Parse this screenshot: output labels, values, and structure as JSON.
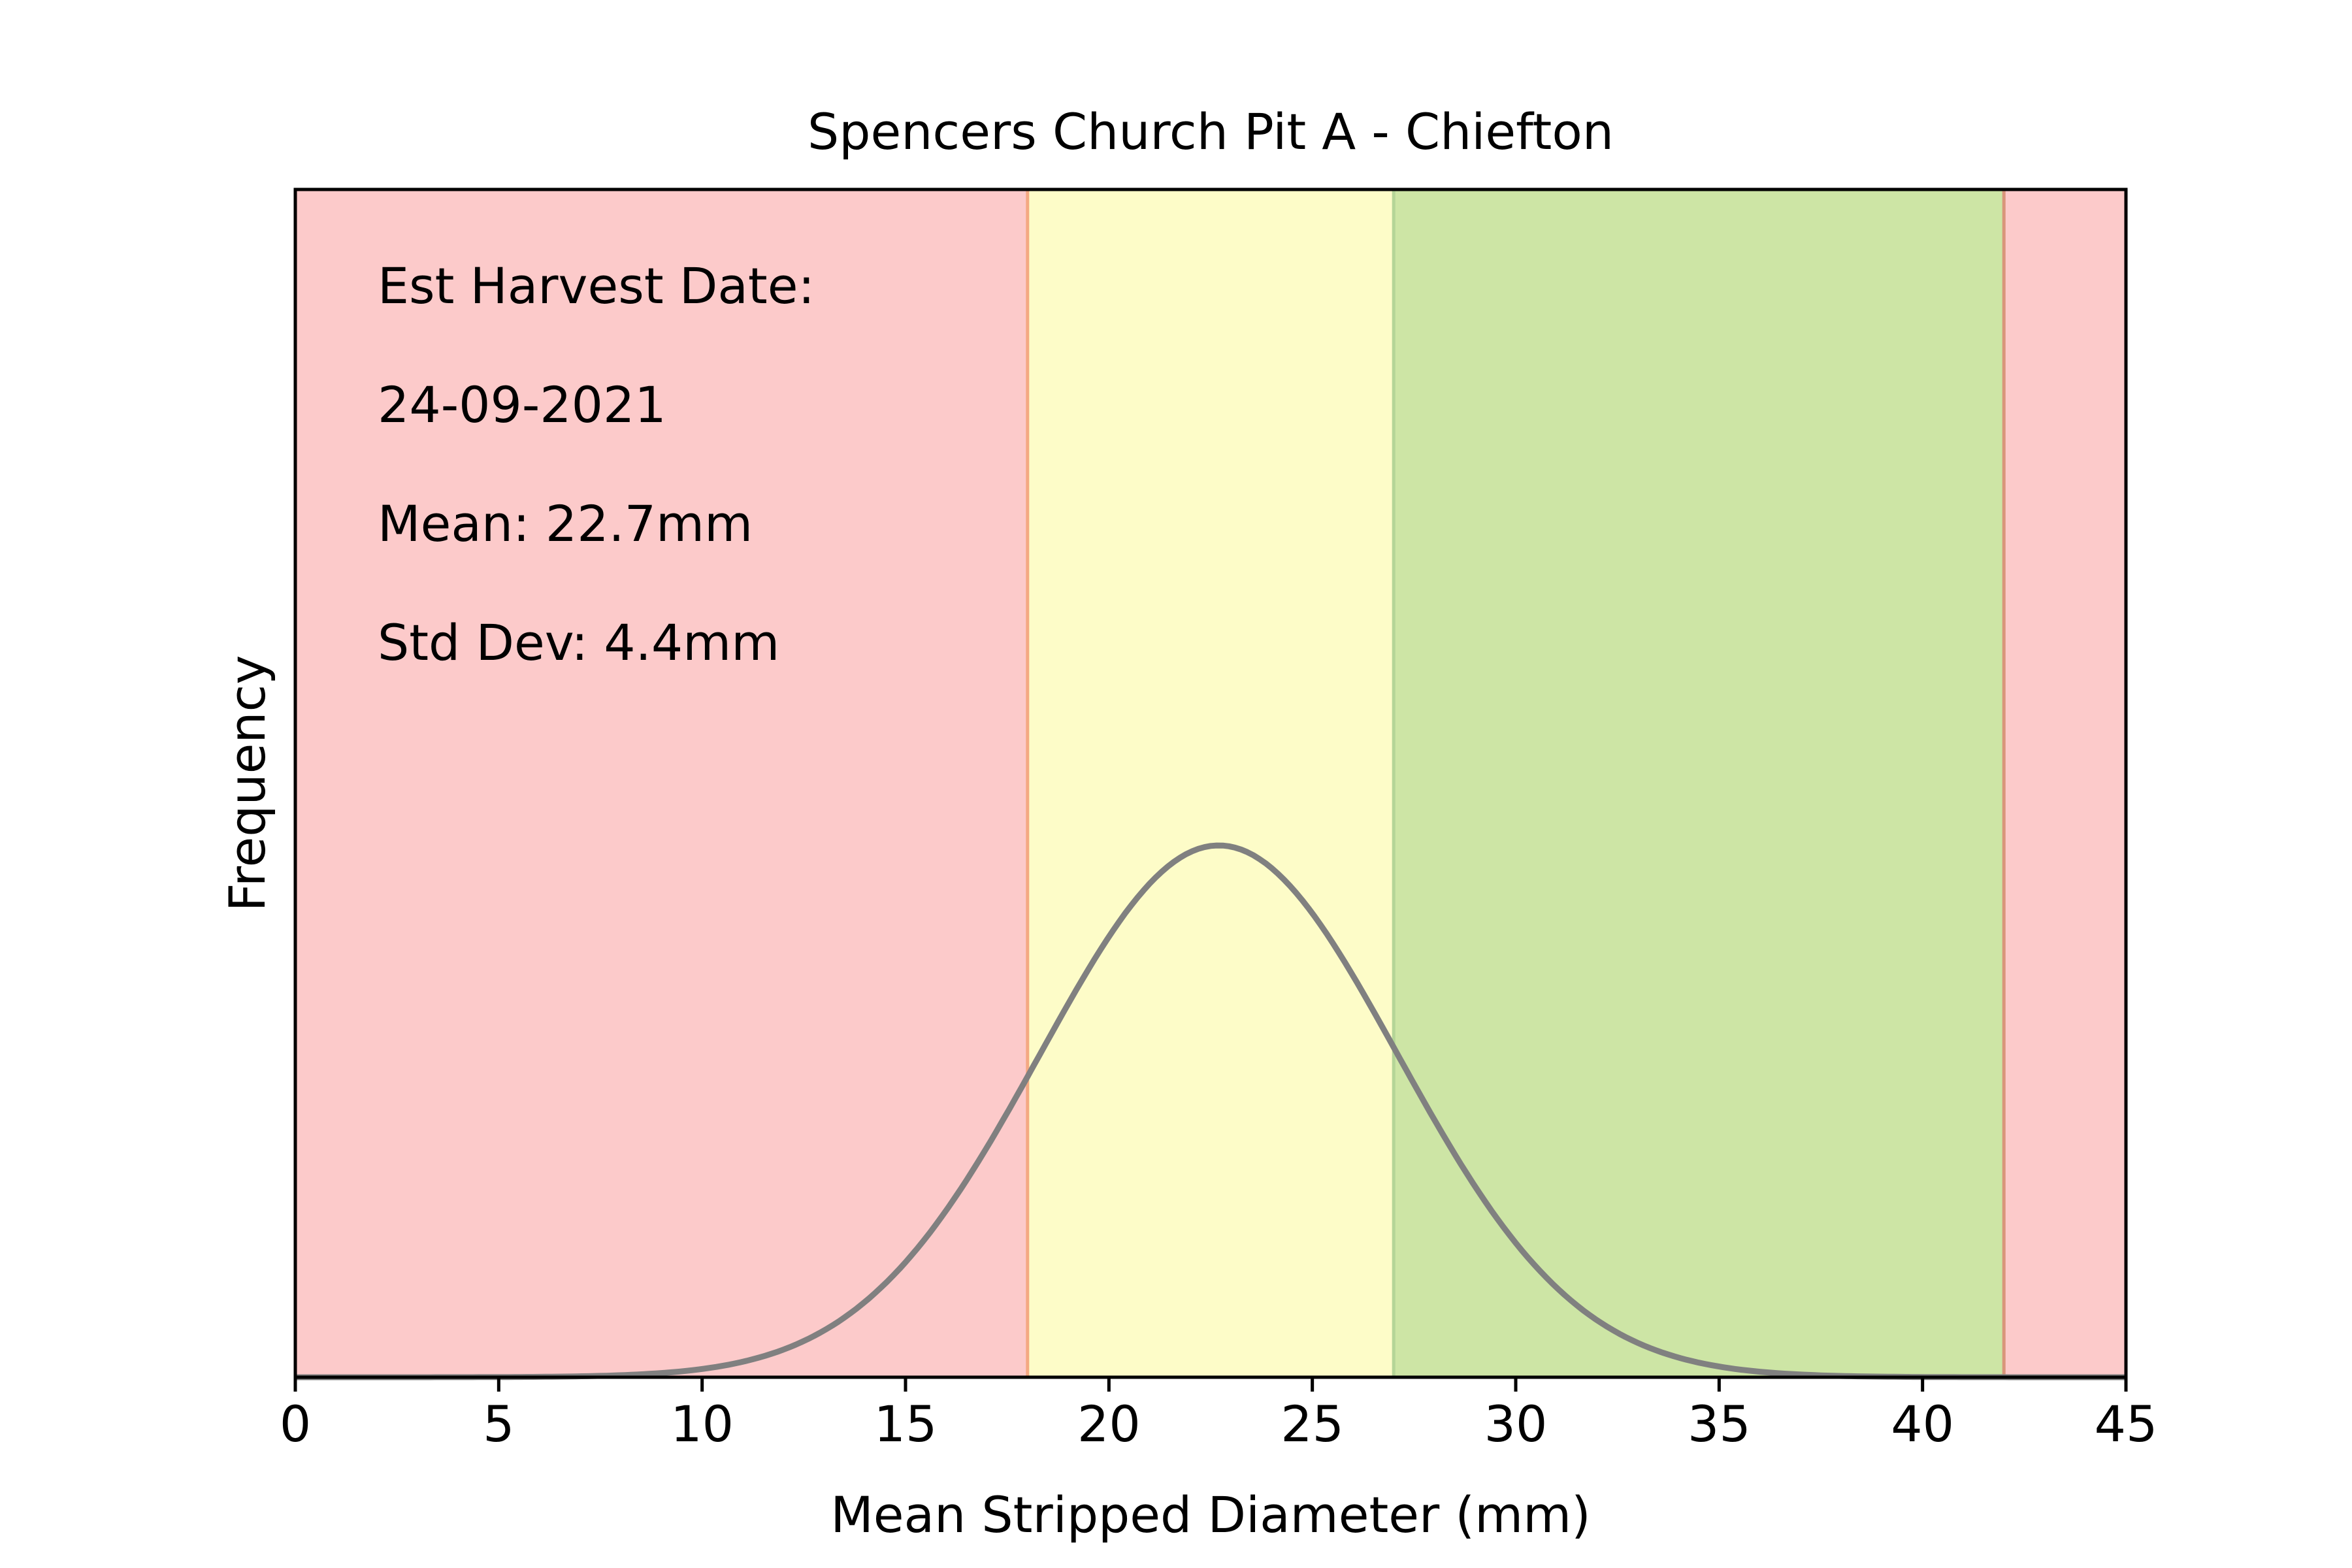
{
  "chart_data": {
    "type": "line",
    "title": "Spencers Church Pit A - Chiefton",
    "xlabel": "Mean Stripped Diameter (mm)",
    "ylabel": "Frequency",
    "xlim": [
      0,
      45
    ],
    "x_ticks": [
      "0",
      "5",
      "10",
      "15",
      "20",
      "25",
      "30",
      "35",
      "40",
      "45"
    ],
    "y_ticks_shown": false,
    "grid": false,
    "annotations": [
      "Est Harvest Date:",
      "24-09-2021",
      "Mean: 22.7mm",
      "Std Dev: 4.4mm"
    ],
    "bands": [
      {
        "from": 0,
        "to": 18,
        "color": "#fccaca"
      },
      {
        "from": 18,
        "to": 27,
        "color": "#fdfcc8"
      },
      {
        "from": 27,
        "to": 42,
        "color": "#cde5a5"
      },
      {
        "from": 42,
        "to": 45,
        "color": "#fccaca"
      }
    ],
    "band_boundaries": [
      {
        "x": 18,
        "color": "#f4a982"
      },
      {
        "x": 27,
        "color": "#b5d597"
      },
      {
        "x": 42,
        "color": "#d9957a"
      }
    ],
    "distribution": {
      "kind": "normal",
      "mean": 22.7,
      "std_dev": 4.4,
      "color": "#808080"
    }
  }
}
